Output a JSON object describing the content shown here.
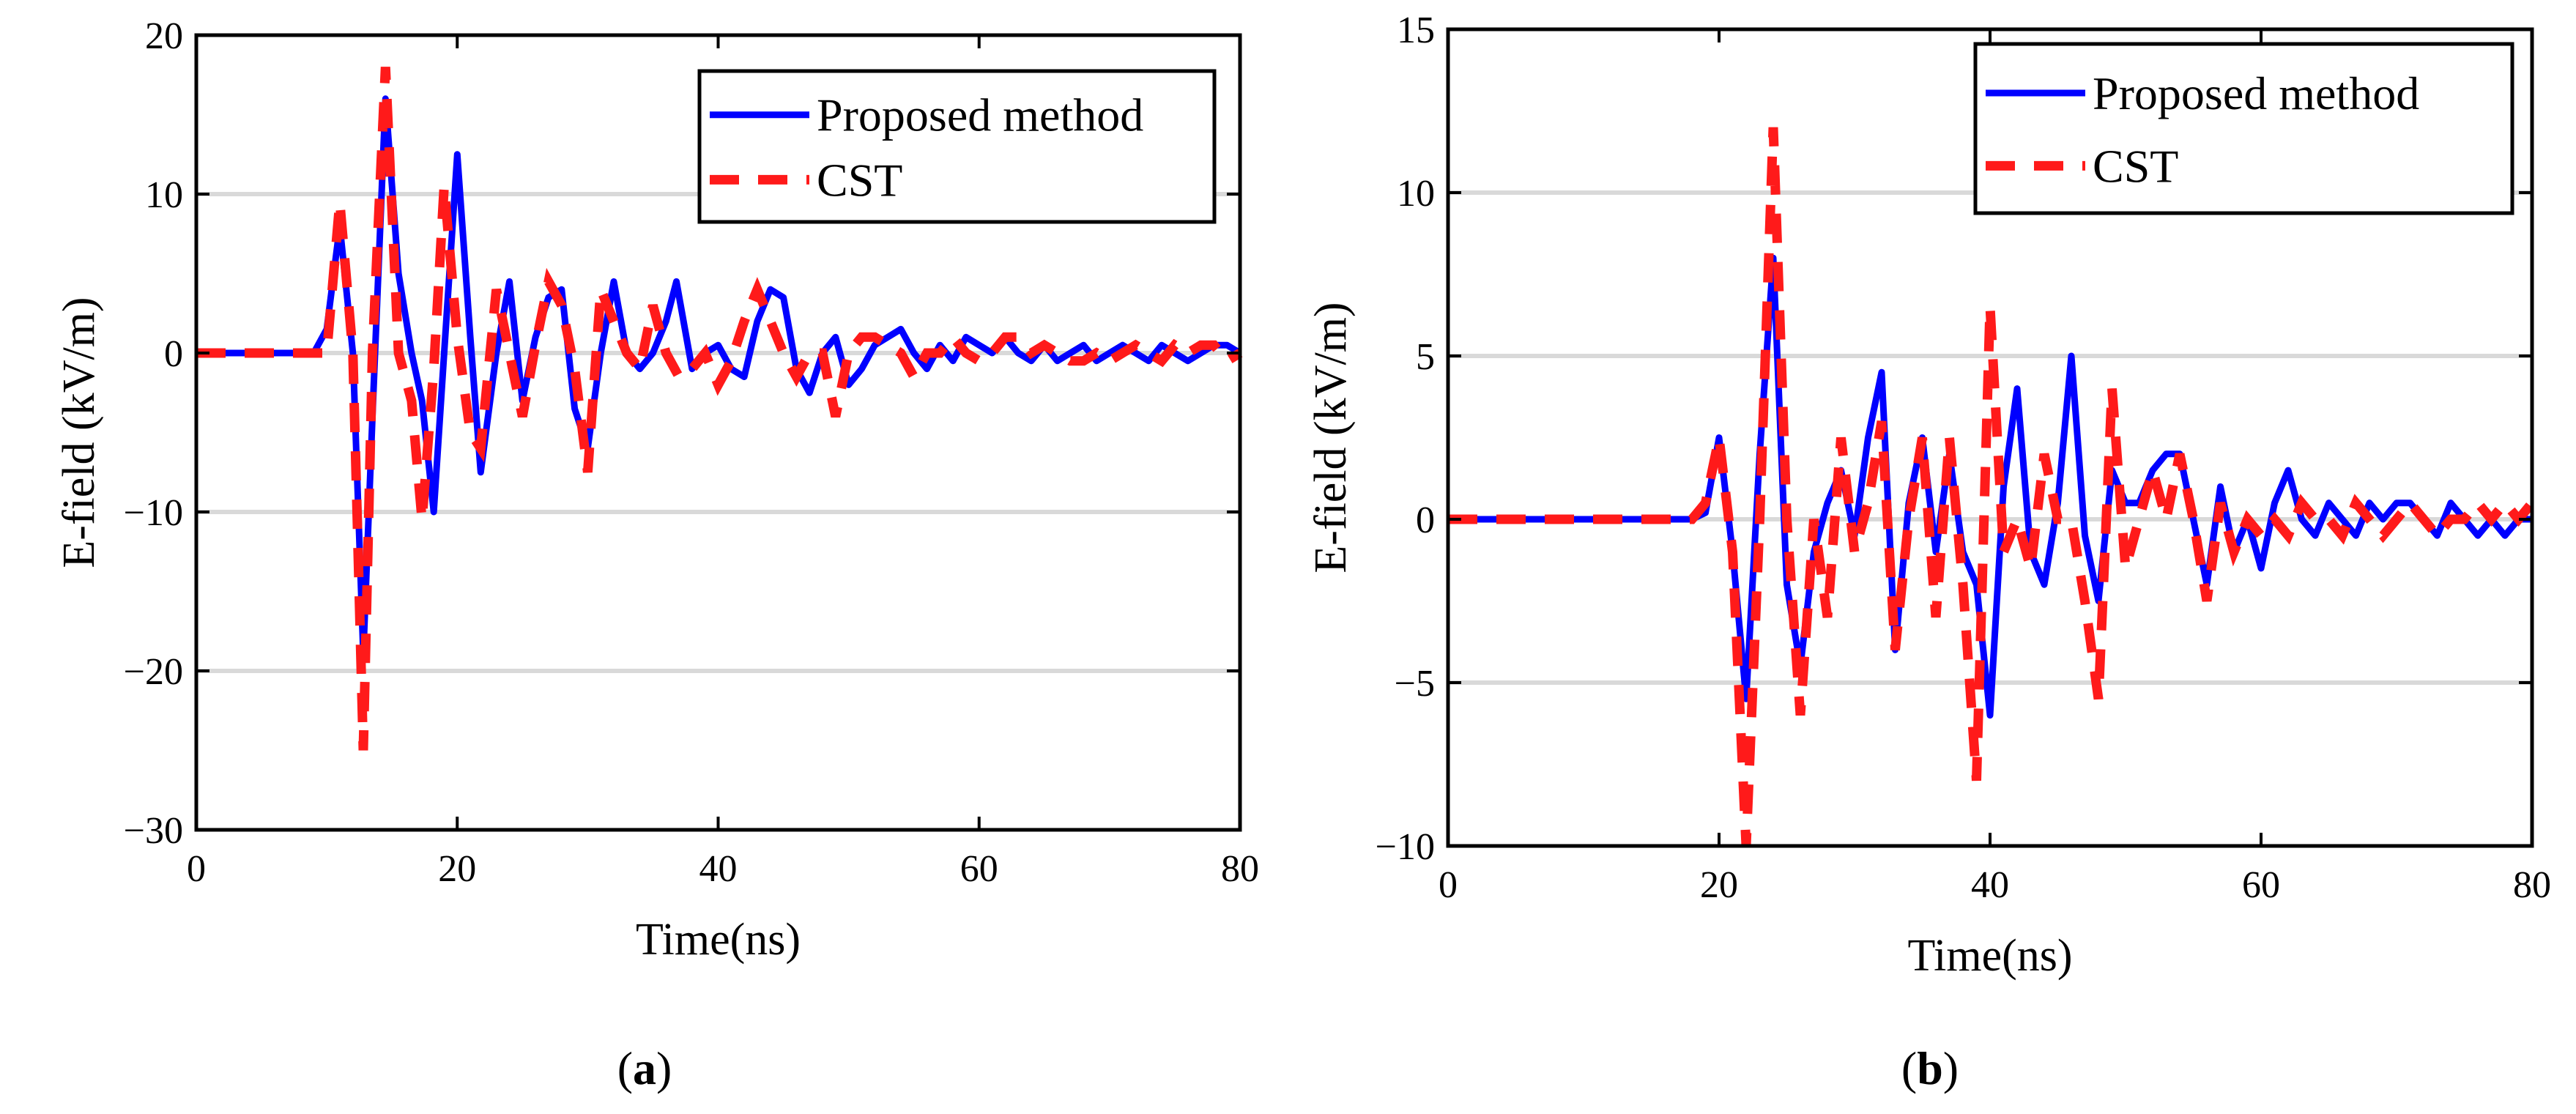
{
  "colors": {
    "proposed": "#0000ff",
    "cst": "#ff1a1a",
    "grid": "#d9d9d9",
    "axis": "#000000"
  },
  "chart_data": [
    {
      "id": "a",
      "type": "line",
      "panel_label": "a",
      "xlabel": "Time(ns)",
      "ylabel": "E-field (kV/m)",
      "xlim": [
        0,
        80
      ],
      "ylim": [
        -30,
        20
      ],
      "xticks": [
        0,
        20,
        40,
        60,
        80
      ],
      "yticks": [
        -30,
        -20,
        -10,
        0,
        10,
        20
      ],
      "ytick_labels": [
        "−30",
        "−20",
        "−10",
        "0",
        "10",
        "20"
      ],
      "grid": "horizontal",
      "legend": {
        "position": "top-right",
        "proposed_label": "Proposed method",
        "cst_label": "CST"
      },
      "series": [
        {
          "name": "Proposed method",
          "style": "solid",
          "x": [
            0,
            5,
            9,
            10,
            11,
            12,
            12.8,
            13.5,
            14.5,
            15.5,
            16.5,
            17.3,
            18.2,
            19,
            20,
            21,
            21.8,
            23,
            24,
            25,
            26,
            27,
            28,
            29,
            30,
            31,
            32,
            33,
            34,
            35,
            36,
            36.8,
            38,
            39,
            40,
            41,
            42,
            43,
            44,
            45,
            46,
            47,
            48,
            49,
            50,
            51,
            52,
            53,
            54,
            55,
            56,
            57,
            58,
            59,
            60,
            61,
            62,
            63,
            64,
            65,
            66,
            67,
            68,
            69,
            70,
            71,
            72,
            73,
            74,
            75,
            76,
            77,
            78,
            79,
            80
          ],
          "y": [
            0,
            0,
            0,
            1.5,
            8,
            0,
            -19,
            -4,
            16,
            5,
            0,
            -3,
            -10,
            0,
            12.5,
            1,
            -7.5,
            0,
            4.5,
            -3,
            1,
            3.5,
            4,
            -3.5,
            -6,
            0,
            4.5,
            0,
            -1,
            0,
            2,
            4.5,
            -1,
            0,
            0.5,
            -1,
            -1.5,
            2,
            4,
            3.5,
            -1,
            -2.5,
            0,
            1,
            -2,
            -1,
            0.5,
            1,
            1.5,
            0,
            -1,
            0.5,
            -0.5,
            1,
            0.5,
            0,
            1,
            0,
            -0.5,
            0.5,
            -0.5,
            0,
            0.5,
            -0.5,
            0,
            0.5,
            0,
            -0.5,
            0.5,
            0,
            -0.5,
            0,
            0.5,
            0.5,
            0
          ]
        },
        {
          "name": "CST",
          "style": "dashed",
          "x": [
            0,
            5,
            9,
            10,
            11,
            12,
            12.8,
            13.5,
            14.5,
            15.5,
            16.5,
            17.3,
            18.2,
            19,
            20,
            21,
            21.8,
            23,
            24,
            25,
            26,
            27,
            28,
            29,
            30,
            31,
            32,
            33,
            34,
            35,
            36,
            37,
            38,
            39,
            40,
            41,
            42,
            43,
            44,
            45,
            46,
            47,
            48,
            49,
            50,
            51,
            52,
            53,
            54,
            55,
            56,
            57,
            58,
            59,
            60,
            61,
            62,
            63,
            64,
            65,
            66,
            67,
            68,
            69,
            70,
            71,
            72,
            73,
            74,
            75,
            76,
            77,
            78,
            79,
            80
          ],
          "y": [
            0,
            0,
            0,
            0,
            9.5,
            0,
            -25,
            0,
            18,
            0,
            -3,
            -10.5,
            -1,
            10.5,
            1,
            -5,
            -6,
            4,
            0,
            -4,
            0.5,
            4.5,
            3,
            -1,
            -7.5,
            4,
            2,
            0,
            -1,
            3,
            0,
            -1.5,
            -1,
            0,
            -2,
            -0.5,
            2,
            4,
            2,
            0,
            -1.5,
            0,
            0,
            -4,
            0,
            1,
            1,
            0.5,
            0,
            -1.5,
            0,
            0,
            1,
            0,
            -0.5,
            0,
            1,
            1,
            0,
            0.5,
            0,
            -0.5,
            -0.5,
            0,
            -0.5,
            0,
            0.5,
            0,
            -0.5,
            0.5,
            0,
            0.5,
            0.5,
            -0.5,
            0
          ]
        }
      ]
    },
    {
      "id": "b",
      "type": "line",
      "panel_label": "b",
      "xlabel": "Time(ns)",
      "ylabel": "E-field (kV/m)",
      "xlim": [
        0,
        80
      ],
      "ylim": [
        -10,
        15
      ],
      "xticks": [
        0,
        20,
        40,
        60,
        80
      ],
      "yticks": [
        -10,
        -5,
        0,
        5,
        10,
        15
      ],
      "ytick_labels": [
        "−10",
        "−5",
        "0",
        "5",
        "10",
        "15"
      ],
      "grid": "horizontal",
      "legend": {
        "position": "top-right",
        "proposed_label": "Proposed method",
        "cst_label": "CST"
      },
      "series": [
        {
          "name": "Proposed method",
          "style": "solid",
          "x": [
            0,
            10,
            18,
            19,
            20,
            21,
            22,
            23,
            24,
            25,
            26,
            27,
            28,
            29,
            30,
            31,
            32,
            33,
            34,
            35,
            36,
            37,
            38,
            39,
            40,
            41,
            42,
            43,
            44,
            45,
            46,
            47,
            48,
            49,
            50,
            51,
            52,
            53,
            54,
            55,
            56,
            57,
            58,
            59,
            60,
            61,
            62,
            63,
            64,
            65,
            66,
            67,
            68,
            69,
            70,
            71,
            72,
            73,
            74,
            75,
            76,
            77,
            78,
            79,
            80
          ],
          "y": [
            0,
            0,
            0,
            0.2,
            2.5,
            -1,
            -5.5,
            2,
            8,
            -2,
            -4.5,
            -1,
            0.5,
            1.5,
            -0.5,
            2.5,
            4.5,
            -4,
            0.5,
            2.5,
            -1,
            2,
            -1,
            -2,
            -6,
            1,
            4,
            -1,
            -2,
            0.5,
            5,
            -0.5,
            -2.5,
            1.5,
            0.5,
            0.5,
            1.5,
            2,
            2,
            0,
            -2,
            1,
            -1,
            0,
            -1.5,
            0.5,
            1.5,
            0,
            -0.5,
            0.5,
            0,
            -0.5,
            0.5,
            0,
            0.5,
            0.5,
            0,
            -0.5,
            0.5,
            0,
            -0.5,
            0,
            -0.5,
            0,
            0
          ]
        },
        {
          "name": "CST",
          "style": "dashed",
          "x": [
            0,
            10,
            18,
            19,
            20,
            21,
            22,
            23,
            24,
            25,
            26,
            27,
            28,
            29,
            30,
            31,
            32,
            33,
            34,
            35,
            36,
            37,
            38,
            39,
            40,
            41,
            42,
            43,
            44,
            45,
            46,
            47,
            48,
            49,
            50,
            51,
            52,
            53,
            54,
            55,
            56,
            57,
            58,
            59,
            60,
            61,
            62,
            63,
            64,
            65,
            66,
            67,
            68,
            69,
            70,
            71,
            72,
            73,
            74,
            75,
            76,
            77,
            78,
            79,
            80
          ],
          "y": [
            0,
            0,
            0,
            0.5,
            2.5,
            -1,
            -10,
            0,
            12,
            0,
            -6,
            0,
            -3,
            2.5,
            -1,
            0.5,
            3,
            -4,
            0,
            2.5,
            -3,
            2.5,
            -2,
            -8,
            6.5,
            -1,
            0,
            -1.5,
            2,
            0,
            0,
            -2.5,
            -5.5,
            4,
            -1.5,
            0,
            1.5,
            0,
            2,
            0,
            -2.5,
            0.5,
            -1,
            0,
            -0.5,
            0,
            -0.5,
            0.5,
            0,
            0,
            -0.5,
            0.5,
            0,
            -0.5,
            0,
            0.5,
            0,
            -0.5,
            0,
            0,
            0.5,
            0,
            0.5,
            0,
            0.5
          ]
        }
      ]
    }
  ]
}
